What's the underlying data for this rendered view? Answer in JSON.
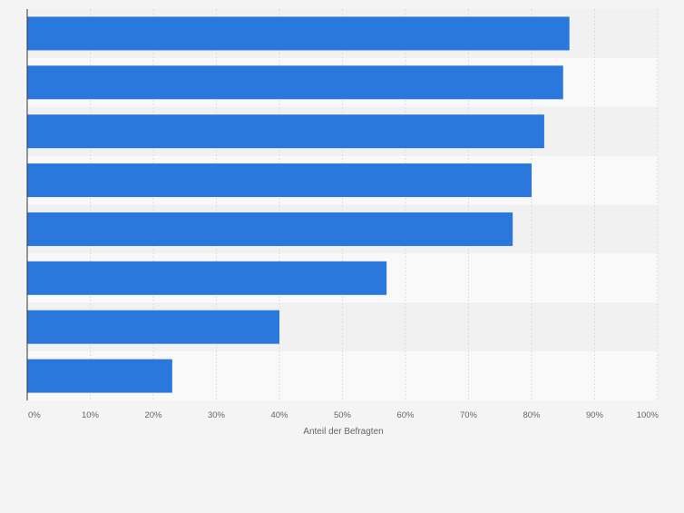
{
  "chart_data": {
    "type": "bar",
    "orientation": "horizontal",
    "title": "",
    "xlabel": "Anteil der Befragten",
    "ylabel": "",
    "categories": [
      "",
      "",
      "",
      "",
      "",
      "",
      "",
      ""
    ],
    "values": [
      86,
      85,
      82,
      80,
      77,
      57,
      40,
      23
    ],
    "xlim": [
      0,
      100
    ],
    "ticks": [
      0,
      10,
      20,
      30,
      40,
      50,
      60,
      70,
      80,
      90,
      100
    ],
    "tick_labels": [
      "0%",
      "10%",
      "20%",
      "30%",
      "40%",
      "50%",
      "60%",
      "70%",
      "80%",
      "90%",
      "100%"
    ],
    "grid": true,
    "legend": "none",
    "colors": {
      "bar": "#2a78de",
      "band_dark": "#f1f1f1",
      "band_light": "#f9f9f9",
      "grid": "#dddddd",
      "axis": "#333333"
    }
  }
}
